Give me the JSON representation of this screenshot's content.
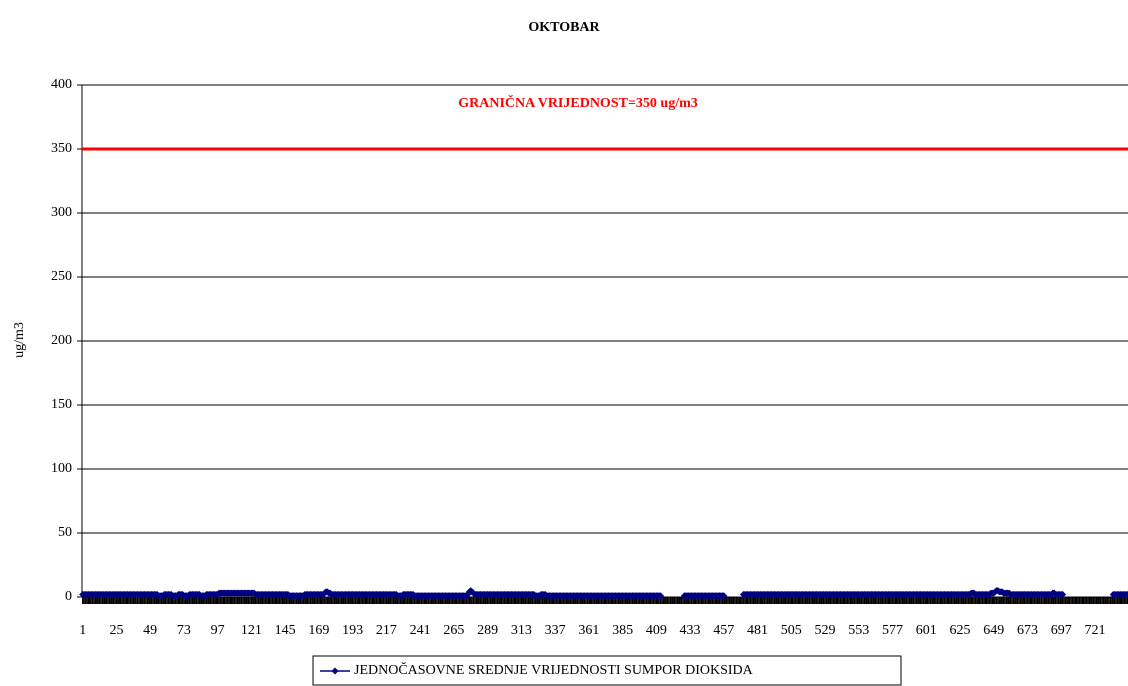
{
  "chart_data": {
    "type": "line",
    "title": "OKTOBAR",
    "annotation": "GRANIČNA VRIJEDNOST=350 ug/m3",
    "threshold": 350,
    "threshold_color": "#ff0000",
    "y_label": "ug/m3",
    "ylim": [
      0,
      400
    ],
    "yticks": [
      0,
      50,
      100,
      150,
      200,
      250,
      300,
      350,
      400
    ],
    "grid": true,
    "xlim": [
      0.5,
      744.5
    ],
    "xticks": [
      1,
      25,
      49,
      73,
      97,
      121,
      145,
      169,
      193,
      217,
      241,
      265,
      289,
      313,
      337,
      361,
      385,
      409,
      433,
      457,
      481,
      505,
      529,
      553,
      577,
      601,
      625,
      649,
      673,
      697,
      721
    ],
    "x": [
      1,
      2,
      3,
      4,
      5,
      6,
      7,
      8,
      9,
      10,
      11,
      12,
      13,
      14,
      15,
      16,
      17,
      18,
      19,
      20,
      21,
      22,
      23,
      24,
      25,
      26,
      27,
      28,
      29,
      30,
      31,
      32,
      33,
      34,
      35,
      36,
      37,
      38,
      39,
      40,
      41,
      42,
      43,
      44,
      45,
      46,
      47,
      48,
      49,
      50,
      51,
      52,
      53,
      54,
      55,
      56,
      57,
      58,
      59,
      60,
      61,
      62,
      63,
      64,
      65,
      66,
      67,
      68,
      69,
      70,
      71,
      72,
      73,
      74,
      75,
      76,
      77,
      78,
      79,
      80,
      81,
      82,
      83,
      84,
      85,
      86,
      87,
      88,
      89,
      90,
      91,
      92,
      93,
      94,
      95,
      96,
      97,
      98,
      99,
      100,
      101,
      102,
      103,
      104,
      105,
      106,
      107,
      108,
      109,
      110,
      111,
      112,
      113,
      114,
      115,
      116,
      117,
      118,
      119,
      120,
      121,
      122,
      123,
      124,
      125,
      126,
      127,
      128,
      129,
      130,
      131,
      132,
      133,
      134,
      135,
      136,
      137,
      138,
      139,
      140,
      141,
      142,
      143,
      144,
      145,
      146,
      147,
      148,
      149,
      150,
      151,
      152,
      153,
      154,
      155,
      156,
      157,
      158,
      159,
      160,
      161,
      162,
      163,
      164,
      165,
      166,
      167,
      168,
      169,
      170,
      171,
      172,
      173,
      174,
      175,
      176,
      177,
      178,
      179,
      180,
      181,
      182,
      183,
      184,
      185,
      186,
      187,
      188,
      189,
      190,
      191,
      192,
      193,
      194,
      195,
      196,
      197,
      198,
      199,
      200,
      201,
      202,
      203,
      204,
      205,
      206,
      207,
      208,
      209,
      210,
      211,
      212,
      213,
      214,
      215,
      216,
      217,
      218,
      219,
      220,
      221,
      222,
      223,
      224,
      225,
      226,
      227,
      228,
      229,
      230,
      231,
      232,
      233,
      234,
      235,
      236,
      237,
      238,
      239,
      240,
      241,
      242,
      243,
      244,
      245,
      246,
      247,
      248,
      249,
      250,
      251,
      252,
      253,
      254,
      255,
      256,
      257,
      258,
      259,
      260,
      261,
      262,
      263,
      264,
      265,
      266,
      267,
      268,
      269,
      270,
      271,
      272,
      273,
      274,
      275,
      276,
      277,
      278,
      279,
      280,
      281,
      282,
      283,
      284,
      285,
      286,
      287,
      288,
      289,
      290,
      291,
      292,
      293,
      294,
      295,
      296,
      297,
      298,
      299,
      300,
      301,
      302,
      303,
      304,
      305,
      306,
      307,
      308,
      309,
      310,
      311,
      312,
      313,
      314,
      315,
      316,
      317,
      318,
      319,
      320,
      321,
      322,
      323,
      324,
      325,
      326,
      327,
      328,
      329,
      330,
      331,
      332,
      333,
      334,
      335,
      336,
      337,
      338,
      339,
      340,
      341,
      342,
      343,
      344,
      345,
      346,
      347,
      348,
      349,
      350,
      351,
      352,
      353,
      354,
      355,
      356,
      357,
      358,
      359,
      360,
      361,
      362,
      363,
      364,
      365,
      366,
      367,
      368,
      369,
      370,
      371,
      372,
      373,
      374,
      375,
      376,
      377,
      378,
      379,
      380,
      381,
      382,
      383,
      384,
      385,
      386,
      387,
      388,
      389,
      390,
      391,
      392,
      393,
      394,
      395,
      396,
      397,
      398,
      399,
      400,
      401,
      402,
      403,
      404,
      405,
      406,
      407,
      408,
      409,
      410,
      411,
      412,
      413,
      414,
      415,
      416,
      417,
      418,
      419,
      420,
      421,
      422,
      423,
      424,
      425,
      426,
      427,
      428,
      429,
      430,
      431,
      432,
      433,
      434,
      435,
      436,
      437,
      438,
      439,
      440,
      441,
      442,
      443,
      444,
      445,
      446,
      447,
      448,
      449,
      450,
      451,
      452,
      453,
      454,
      455,
      456,
      457,
      458,
      459,
      460,
      461,
      462,
      463,
      464,
      465,
      466,
      467,
      468,
      469,
      470,
      471,
      472,
      473,
      474,
      475,
      476,
      477,
      478,
      479,
      480,
      481,
      482,
      483,
      484,
      485,
      486,
      487,
      488,
      489,
      490,
      491,
      492,
      493,
      494,
      495,
      496,
      497,
      498,
      499,
      500,
      501,
      502,
      503,
      504,
      505,
      506,
      507,
      508,
      509,
      510,
      511,
      512,
      513,
      514,
      515,
      516,
      517,
      518,
      519,
      520,
      521,
      522,
      523,
      524,
      525,
      526,
      527,
      528,
      529,
      530,
      531,
      532,
      533,
      534,
      535,
      536,
      537,
      538,
      539,
      540,
      541,
      542,
      543,
      544,
      545,
      546,
      547,
      548,
      549,
      550,
      551,
      552,
      553,
      554,
      555,
      556,
      557,
      558,
      559,
      560,
      561,
      562,
      563,
      564,
      565,
      566,
      567,
      568,
      569,
      570,
      571,
      572,
      573,
      574,
      575,
      576,
      577,
      578,
      579,
      580,
      581,
      582,
      583,
      584,
      585,
      586,
      587,
      588,
      589,
      590,
      591,
      592,
      593,
      594,
      595,
      596,
      597,
      598,
      599,
      600,
      601,
      602,
      603,
      604,
      605,
      606,
      607,
      608,
      609,
      610,
      611,
      612,
      613,
      614,
      615,
      616,
      617,
      618,
      619,
      620,
      621,
      622,
      623,
      624,
      625,
      626,
      627,
      628,
      629,
      630,
      631,
      632,
      633,
      634,
      635,
      636,
      637,
      638,
      639,
      640,
      641,
      642,
      643,
      644,
      645,
      646,
      647,
      648,
      649,
      650,
      651,
      652,
      653,
      654,
      655,
      656,
      657,
      658,
      659,
      660,
      661,
      662,
      663,
      664,
      665,
      666,
      667,
      668,
      669,
      670,
      671,
      672,
      673,
      674,
      675,
      676,
      677,
      678,
      679,
      680,
      681,
      682,
      683,
      684,
      685,
      686,
      687,
      688,
      689,
      690,
      691,
      692,
      693,
      694,
      695,
      696,
      697,
      698,
      699,
      700,
      701,
      702,
      703,
      704,
      705,
      706,
      707,
      708,
      709,
      710,
      711,
      712,
      713,
      714,
      715,
      716,
      717,
      718,
      719,
      720,
      721,
      722,
      723,
      724,
      725,
      726,
      727,
      728,
      729,
      730,
      731,
      732,
      733,
      734,
      735,
      736,
      737,
      738,
      739,
      740,
      741,
      742,
      743,
      744
    ],
    "series": [
      {
        "name": "JEDNOČASOVNE SREDNJE VRIJEDNOSTI SUMPOR DIOKSIDA",
        "color": "#000080",
        "values": [
          2,
          2,
          2,
          2,
          2,
          2,
          2,
          2,
          2,
          2,
          2,
          2,
          2,
          2,
          2,
          2,
          2,
          2,
          2,
          2,
          2,
          2,
          2,
          2,
          2,
          2,
          2,
          2,
          2,
          2,
          2,
          2,
          2,
          2,
          2,
          2,
          2,
          2,
          2,
          2,
          2,
          2,
          2,
          2,
          2,
          2,
          2,
          2,
          2,
          2,
          2,
          2,
          2,
          2,
          1,
          1,
          1,
          1,
          2,
          2,
          2,
          2,
          2,
          2,
          1,
          1,
          1,
          1,
          2,
          2,
          2,
          2,
          1,
          1,
          1,
          1,
          2,
          2,
          2,
          2,
          2,
          2,
          2,
          2,
          1,
          1,
          1,
          1,
          2,
          2,
          2,
          2,
          2,
          2,
          2,
          2,
          2,
          3,
          3,
          3,
          3,
          3,
          3,
          3,
          3,
          3,
          3,
          3,
          3,
          3,
          3,
          3,
          3,
          3,
          3,
          3,
          3,
          3,
          3,
          3,
          3,
          3,
          3,
          2,
          2,
          2,
          2,
          2,
          2,
          2,
          2,
          2,
          2,
          2,
          2,
          2,
          2,
          2,
          2,
          2,
          2,
          2,
          2,
          2,
          2,
          2,
          2,
          1,
          1,
          1,
          1,
          1,
          1,
          1,
          1,
          1,
          1,
          1,
          2,
          2,
          2,
          2,
          2,
          2,
          2,
          2,
          2,
          2,
          2,
          2,
          2,
          2,
          3,
          4,
          4,
          3,
          3,
          2,
          2,
          2,
          2,
          2,
          2,
          2,
          2,
          2,
          2,
          2,
          2,
          2,
          2,
          2,
          2,
          2,
          2,
          2,
          2,
          2,
          2,
          2,
          2,
          2,
          2,
          2,
          2,
          2,
          2,
          2,
          2,
          2,
          2,
          2,
          2,
          2,
          2,
          2,
          2,
          2,
          2,
          2,
          2,
          2,
          2,
          2,
          1,
          1,
          1,
          1,
          2,
          2,
          2,
          2,
          2,
          2,
          2,
          2,
          1,
          1,
          1,
          1,
          1,
          1,
          1,
          1,
          1,
          1,
          1,
          1,
          1,
          1,
          1,
          1,
          1,
          1,
          1,
          1,
          1,
          1,
          1,
          1,
          1,
          1,
          1,
          1,
          1,
          1,
          1,
          1,
          1,
          1,
          1,
          1,
          1,
          1,
          2,
          4,
          5,
          4,
          3,
          2,
          2,
          2,
          2,
          2,
          2,
          2,
          2,
          2,
          2,
          2,
          2,
          2,
          2,
          2,
          2,
          2,
          2,
          2,
          2,
          2,
          2,
          2,
          2,
          2,
          2,
          2,
          2,
          2,
          2,
          2,
          2,
          2,
          2,
          2,
          2,
          2,
          2,
          2,
          2,
          2,
          2,
          2,
          1,
          1,
          1,
          1,
          2,
          2,
          2,
          2,
          1,
          1,
          1,
          1,
          1,
          1,
          1,
          1,
          1,
          1,
          1,
          1,
          1,
          1,
          1,
          1,
          1,
          1,
          1,
          1,
          1,
          1,
          1,
          1,
          1,
          1,
          1,
          1,
          1,
          1,
          1,
          1,
          1,
          1,
          1,
          1,
          1,
          1,
          1,
          1,
          1,
          1,
          1,
          1,
          1,
          1,
          1,
          1,
          1,
          1,
          1,
          1,
          1,
          1,
          1,
          1,
          1,
          1,
          1,
          1,
          1,
          1,
          1,
          1,
          1,
          1,
          1,
          1,
          1,
          1,
          1,
          1,
          1,
          1,
          1,
          1,
          1,
          1,
          1,
          1,
          1,
          1,
          null,
          null,
          null,
          null,
          null,
          null,
          null,
          null,
          null,
          null,
          null,
          null,
          null,
          null,
          null,
          null,
          1,
          1,
          1,
          1,
          1,
          1,
          1,
          1,
          1,
          1,
          1,
          1,
          1,
          1,
          1,
          1,
          1,
          1,
          1,
          1,
          1,
          1,
          1,
          1,
          1,
          1,
          1,
          1,
          1,
          null,
          null,
          null,
          null,
          null,
          null,
          null,
          null,
          null,
          null,
          null,
          null,
          null,
          2,
          2,
          2,
          2,
          2,
          2,
          2,
          2,
          2,
          2,
          2,
          2,
          2,
          2,
          2,
          2,
          2,
          2,
          2,
          2,
          2,
          2,
          2,
          2,
          2,
          2,
          2,
          2,
          2,
          2,
          2,
          2,
          2,
          2,
          2,
          2,
          2,
          2,
          2,
          2,
          2,
          2,
          2,
          2,
          2,
          2,
          2,
          2,
          2,
          2,
          2,
          2,
          2,
          2,
          2,
          2,
          2,
          2,
          2,
          2,
          2,
          2,
          2,
          2,
          2,
          2,
          2,
          2,
          2,
          2,
          2,
          2,
          2,
          2,
          2,
          2,
          2,
          2,
          2,
          2,
          2,
          2,
          2,
          2,
          2,
          2,
          2,
          2,
          2,
          2,
          2,
          2,
          2,
          2,
          2,
          2,
          2,
          2,
          2,
          2,
          2,
          2,
          2,
          2,
          2,
          2,
          2,
          2,
          2,
          2,
          2,
          2,
          2,
          2,
          2,
          2,
          2,
          2,
          2,
          2,
          2,
          2,
          2,
          2,
          2,
          2,
          2,
          2,
          2,
          2,
          2,
          2,
          2,
          2,
          2,
          2,
          2,
          2,
          2,
          2,
          2,
          2,
          2,
          2,
          2,
          2,
          2,
          2,
          2,
          2,
          2,
          2,
          2,
          2,
          2,
          2,
          2,
          2,
          2,
          2,
          2,
          2,
          3,
          3,
          3,
          2,
          2,
          2,
          2,
          2,
          2,
          2,
          2,
          2,
          2,
          2,
          3,
          3,
          3,
          4,
          5,
          5,
          4,
          4,
          4,
          3,
          3,
          3,
          3,
          3,
          2,
          2,
          2,
          2,
          2,
          2,
          2,
          2,
          2,
          2,
          2,
          2,
          2,
          2,
          2,
          2,
          2,
          2,
          2,
          2,
          2,
          2,
          2,
          2,
          2,
          2,
          2,
          2,
          2,
          2,
          3,
          3,
          2,
          2,
          2,
          2,
          2,
          2,
          null,
          null,
          null,
          null,
          null,
          null,
          null,
          null,
          null,
          null,
          null,
          null,
          null,
          null,
          null,
          null,
          null,
          null,
          null,
          null,
          null,
          null,
          null,
          null,
          null,
          null,
          null,
          null,
          null,
          null,
          null,
          null,
          null,
          null,
          null,
          2,
          2,
          2,
          2,
          2,
          2,
          2,
          2,
          2,
          2,
          2
        ]
      }
    ]
  }
}
